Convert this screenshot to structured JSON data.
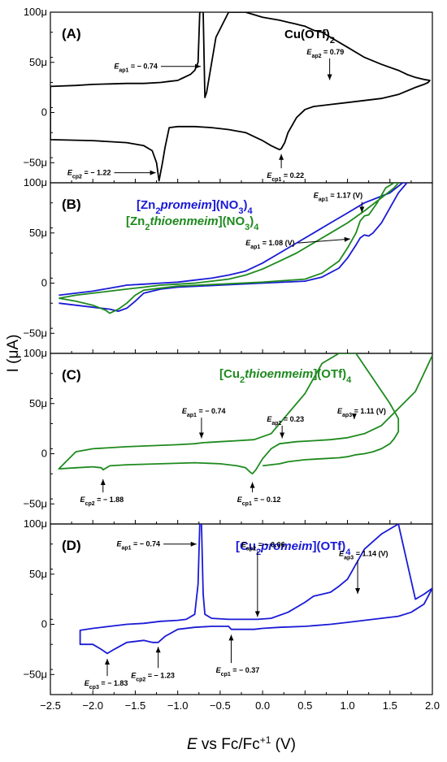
{
  "chart_data": {
    "type": "line",
    "xlabel": "E vs Fc/Fc+1 (V)",
    "ylabel": "I (μA)",
    "xlim": [
      -2.5,
      2.0
    ],
    "x_ticks": [
      -2.5,
      -2.0,
      -1.5,
      -1.0,
      -0.5,
      0.0,
      0.5,
      1.0,
      1.5,
      2.0
    ],
    "x_tick_labels": [
      "−2.5",
      "−2.0",
      "−1.5",
      "−1.0",
      "−0.5",
      "0.0",
      "0.5",
      "1.0",
      "1.5",
      "2.0"
    ],
    "panels": [
      {
        "letter": "(A)",
        "title": "Cu(OTf)2",
        "title_color": "#000000",
        "ylim": [
          -70,
          100
        ],
        "y_ticks": [
          -50,
          0,
          50,
          100
        ],
        "y_tick_labels": [
          "−50μ",
          "0",
          "50μ",
          "100μ"
        ],
        "series": [
          {
            "color": "#000000",
            "x": [
              -0.72,
              -0.74,
              -0.76,
              -0.8,
              -0.85,
              -0.9,
              -0.95,
              -1.0,
              -1.1,
              -1.2,
              -1.4,
              -1.6,
              -1.8,
              -2.0,
              -2.2,
              -2.5,
              -2.5,
              -2.0,
              -1.8,
              -1.6,
              -1.4,
              -1.3,
              -1.25,
              -1.22,
              -1.18,
              -1.15,
              -1.1,
              -1.0,
              -0.8,
              -0.6,
              -0.4,
              -0.2,
              -0.1,
              0.0,
              0.1,
              0.15,
              0.2,
              0.22,
              0.26,
              0.3,
              0.4,
              0.5,
              0.6,
              0.8,
              1.0,
              1.2,
              1.4,
              1.6,
              1.8,
              1.9,
              1.95,
              1.97,
              1.9,
              1.8,
              1.7,
              1.6,
              1.4,
              1.2,
              1.0,
              0.8,
              0.7,
              0.6,
              0.55,
              0.5,
              0.45,
              0.4,
              0.3,
              0.2,
              0.0,
              -0.2,
              -0.4,
              -0.55,
              -0.62,
              -0.66,
              -0.68,
              -0.7
            ],
            "y": [
              100,
              100,
              50,
              42,
              38,
              36,
              34,
              32,
              31,
              30,
              29,
              29,
              28.5,
              28,
              27,
              26,
              -27,
              -28,
              -29,
              -30,
              -33,
              -38,
              -50,
              -68,
              -50,
              -35,
              -15,
              -14,
              -14,
              -15,
              -17,
              -20,
              -24,
              -28,
              -33,
              -35,
              -37,
              -36,
              -30,
              -20,
              -5,
              3,
              6,
              8,
              10,
              12,
              14,
              18,
              25,
              28,
              30,
              32,
              33,
              35,
              38,
              42,
              48,
              55,
              65,
              75,
              80,
              82,
              84,
              86,
              87,
              88,
              90,
              92,
              95,
              100,
              100,
              75,
              40,
              20,
              15,
              100
            ]
          }
        ],
        "annotations": [
          {
            "sym": "E",
            "sub": "ap1",
            "value": " = − 0.74",
            "ax": -1.75,
            "ay": 46,
            "tx": -0.71,
            "ty": 46,
            "dir": "right"
          },
          {
            "sym": "E",
            "sub": "ap2",
            "value": " = 0.79",
            "ax": 0.52,
            "ay": 58,
            "tx": 0.79,
            "ty": 30,
            "dir": "down"
          },
          {
            "sym": "E",
            "sub": "cp2",
            "value": " = − 1.22",
            "ax": -2.3,
            "ay": -60,
            "tx": -1.24,
            "ty": -60,
            "dir": "right"
          },
          {
            "sym": "E",
            "sub": "cp1",
            "value": " = 0.22",
            "ax": 0.05,
            "ay": -62,
            "tx": 0.22,
            "ty": -39,
            "dir": "up"
          }
        ]
      },
      {
        "letter": "(B)",
        "title": "[Zn2promeim](NO3)4",
        "title_color": "#1a1ad6",
        "title2": "[Zn2thioenmeim](NO3)4",
        "title2_color": "#1e8a1e",
        "ylim": [
          -70,
          100
        ],
        "y_ticks": [
          -50,
          0,
          50,
          100
        ],
        "y_tick_labels": [
          "−50μ",
          "0",
          "50μ",
          "100μ"
        ],
        "series": [
          {
            "name": "[Zn2promeim](NO3)4",
            "color": "#1a1ad6",
            "x": [
              -2.4,
              -2.2,
              -2.0,
              -1.8,
              -1.7,
              -1.6,
              -1.5,
              -1.4,
              -1.2,
              -1.0,
              -0.5,
              0.0,
              0.5,
              0.7,
              0.9,
              1.0,
              1.1,
              1.15,
              1.2,
              1.25,
              1.3,
              1.4,
              1.5,
              1.6,
              1.7,
              1.65,
              1.5,
              1.2,
              1.0,
              0.8,
              0.6,
              0.4,
              0.2,
              0.0,
              -0.2,
              -0.4,
              -0.6,
              -0.8,
              -1.0,
              -1.2,
              -1.4,
              -1.6,
              -1.8,
              -2.0,
              -2.2,
              -2.4
            ],
            "y": [
              -20,
              -22,
              -24,
              -26,
              -28,
              -25,
              -18,
              -10,
              -6,
              -4,
              -2,
              0,
              2,
              6,
              15,
              25,
              38,
              45,
              48,
              47,
              50,
              60,
              75,
              90,
              100,
              100,
              90,
              80,
              70,
              60,
              50,
              40,
              30,
              20,
              12,
              8,
              5,
              3,
              1,
              0,
              -1,
              -2,
              -5,
              -8,
              -10,
              -12
            ]
          }
        ],
        "annotations": []
      },
      {
        "letter": "(C)",
        "title": "[Cu2thioenmeim](OTf)4",
        "title_color": "#1e8a1e",
        "ylim": [
          -70,
          100
        ],
        "y_ticks": [
          -50,
          0,
          50,
          100
        ],
        "y_tick_labels": [
          "−50μ",
          "0",
          "50μ",
          "100μ"
        ],
        "series": [
          {
            "color": "#1e8a1e",
            "x": [
              0.0,
              0.2,
              0.3,
              0.5,
              0.7,
              0.9,
              1.0,
              1.05,
              1.1,
              1.2,
              1.3,
              1.4,
              1.5,
              1.55,
              1.6,
              1.6,
              1.5,
              1.3,
              1.1,
              0.9,
              0.7,
              0.5,
              0.3,
              0.1,
              -0.1,
              -0.3,
              -0.5,
              -0.7,
              -0.8,
              -1.0,
              -1.3,
              -1.6,
              -1.8,
              -2.0,
              -2.2,
              -2.4,
              -2.4,
              -2.2,
              -2.0,
              -1.9,
              -1.88,
              -1.8,
              -1.6,
              -1.2,
              -0.8,
              -0.5,
              -0.3,
              -0.2,
              -0.15,
              -0.12,
              -0.08,
              0.0,
              0.1,
              0.2,
              0.4,
              0.6,
              0.8,
              1.0,
              1.2,
              1.4,
              1.6,
              1.8,
              1.9,
              2.0
            ],
            "y": [
              -12,
              -10,
              -8,
              -6,
              -5,
              -4,
              -3,
              -2,
              -1,
              0,
              2,
              5,
              10,
              15,
              22,
              35,
              50,
              75,
              100,
              100,
              90,
              60,
              40,
              20,
              14,
              13,
              12,
              11,
              10,
              9,
              8,
              7,
              6,
              5,
              2,
              -15,
              -15,
              -14,
              -13,
              -14,
              -16,
              -12,
              -11,
              -10,
              -9,
              -10,
              -12,
              -14,
              -18,
              -20,
              -16,
              -5,
              5,
              10,
              12,
              13,
              14,
              16,
              20,
              28,
              45,
              62,
              80,
              98
            ]
          }
        ],
        "annotations": [
          {
            "sym": "E",
            "sub": "ap1",
            "value": " = − 0.74",
            "ax": -0.95,
            "ay": 40,
            "tx": -0.72,
            "ty": 13,
            "dir": "down"
          },
          {
            "sym": "E",
            "sub": "ap2",
            "value": " = 0.23",
            "ax": 0.05,
            "ay": 32,
            "tx": 0.23,
            "ty": 13,
            "dir": "down"
          },
          {
            "sym": "E",
            "sub": "ap3",
            "value": " = 1.11 (V)",
            "ax": 0.88,
            "ay": 40,
            "tx": 1.08,
            "ty": 32,
            "dir": "down"
          },
          {
            "sym": "E",
            "sub": "cp2",
            "value": " = − 1.88",
            "ax": -2.15,
            "ay": -45,
            "tx": -1.88,
            "ty": -23,
            "dir": "up"
          },
          {
            "sym": "E",
            "sub": "cp1",
            "value": " = − 0.12",
            "ax": -0.3,
            "ay": -45,
            "tx": -0.12,
            "ty": -26,
            "dir": "up"
          }
        ]
      },
      {
        "letter": "(D)",
        "title": "[Cu2promeim](OTf)4",
        "title_color": "#1a1ad6",
        "ylim": [
          -70,
          100
        ],
        "y_ticks": [
          -50,
          0,
          50,
          100
        ],
        "y_tick_labels": [
          "−50μ",
          "0",
          "50μ",
          "100μ"
        ],
        "series": [
          {
            "color": "#1a1ad6",
            "x": [
              0.0,
              0.2,
              0.5,
              0.8,
              1.0,
              1.2,
              1.4,
              1.6,
              1.75,
              1.9,
              2.0,
              1.9,
              1.8,
              1.6,
              1.4,
              1.2,
              1.1,
              1.0,
              0.9,
              0.8,
              0.7,
              0.6,
              0.5,
              0.3,
              0.1,
              -0.06,
              -0.2,
              -0.4,
              -0.6,
              -0.68,
              -0.7,
              -0.72,
              -0.74,
              -0.76,
              -0.8,
              -0.9,
              -1.0,
              -1.2,
              -1.4,
              -1.6,
              -1.8,
              -2.0,
              -2.15,
              -2.15,
              -2.0,
              -1.9,
              -1.83,
              -1.75,
              -1.6,
              -1.4,
              -1.3,
              -1.23,
              -1.15,
              -1.0,
              -0.8,
              -0.6,
              -0.4,
              -0.37,
              -0.3,
              -0.1,
              0.0
            ],
            "y": [
              -4,
              -3,
              -2,
              0,
              2,
              4,
              6,
              8,
              12,
              20,
              36,
              30,
              25,
              100,
              90,
              75,
              60,
              45,
              38,
              32,
              30,
              28,
              22,
              12,
              6,
              5,
              5,
              5,
              6,
              10,
              30,
              100,
              100,
              40,
              10,
              5,
              4,
              3,
              1,
              0,
              -2,
              -4,
              -6,
              -20,
              -20,
              -25,
              -29,
              -25,
              -18,
              -16,
              -18,
              -18,
              -12,
              -5,
              -3,
              -2,
              -2,
              -5,
              -5,
              -5,
              -4
            ]
          }
        ],
        "annotations": [
          {
            "sym": "E",
            "sub": "ap1",
            "value": " = − 0.74",
            "ax": -1.72,
            "ay": 80,
            "tx": -0.76,
            "ty": 80,
            "dir": "right"
          },
          {
            "sym": "E",
            "sub": "ap2",
            "value": " = − 0.06",
            "ax": -0.25,
            "ay": 77,
            "tx": -0.06,
            "ty": 5,
            "dir": "down"
          },
          {
            "sym": "E",
            "sub": "ap3",
            "value": " = 1.14 (V)",
            "ax": 0.9,
            "ay": 68,
            "tx": 1.12,
            "ty": 28,
            "dir": "down"
          },
          {
            "sym": "E",
            "sub": "cp3",
            "value": " = − 1.83",
            "ax": -2.1,
            "ay": -58,
            "tx": -1.83,
            "ty": -32,
            "dir": "up"
          },
          {
            "sym": "E",
            "sub": "cp2",
            "value": " = − 1.23",
            "ax": -1.55,
            "ay": -50,
            "tx": -1.23,
            "ty": -20,
            "dir": "up"
          },
          {
            "sym": "E",
            "sub": "cp1",
            "value": " = − 0.37",
            "ax": -0.55,
            "ay": -45,
            "tx": -0.37,
            "ty": -8,
            "dir": "up"
          }
        ]
      }
    ]
  },
  "extra_annotations": [
    {
      "panel": 1,
      "sym": "E",
      "sub": "ap1",
      "value": " = 1.17 (V)",
      "ax": 0.6,
      "ay": 85,
      "tx": 1.17,
      "ty": 68,
      "dir": "down",
      "color": "#000000"
    },
    {
      "panel": 1,
      "sym": "E",
      "sub": "ap1",
      "value": " = 1.08 (V)",
      "ax": -0.2,
      "ay": 40,
      "tx": 1.05,
      "ty": 44,
      "dir": "right",
      "color": "#000000"
    }
  ],
  "panel_B_series_2": {
    "name": "[Zn2thioenmeim](NO3)4",
    "color": "#1e8a1e",
    "x": [
      -2.4,
      -2.2,
      -2.0,
      -1.85,
      -1.8,
      -1.7,
      -1.6,
      -1.5,
      -1.4,
      -1.2,
      -1.0,
      -0.5,
      0.0,
      0.5,
      0.7,
      0.9,
      1.0,
      1.1,
      1.15,
      1.2,
      1.25,
      1.35,
      1.45,
      1.55,
      1.6,
      1.55,
      1.4,
      1.2,
      1.0,
      0.8,
      0.6,
      0.4,
      0.2,
      0.0,
      -0.2,
      -0.4,
      -0.6,
      -0.8,
      -1.0,
      -1.2,
      -1.4,
      -1.6,
      -1.8,
      -2.0,
      -2.2,
      -2.4
    ],
    "y": [
      -15,
      -18,
      -22,
      -27,
      -30,
      -26,
      -20,
      -12,
      -7,
      -5,
      -3,
      -1,
      1,
      4,
      10,
      22,
      35,
      50,
      62,
      67,
      68,
      80,
      95,
      100,
      100,
      95,
      85,
      72,
      60,
      50,
      40,
      30,
      22,
      14,
      8,
      4,
      2,
      0,
      -1,
      -2,
      -4,
      -6,
      -8,
      -10,
      -12,
      -15
    ]
  }
}
